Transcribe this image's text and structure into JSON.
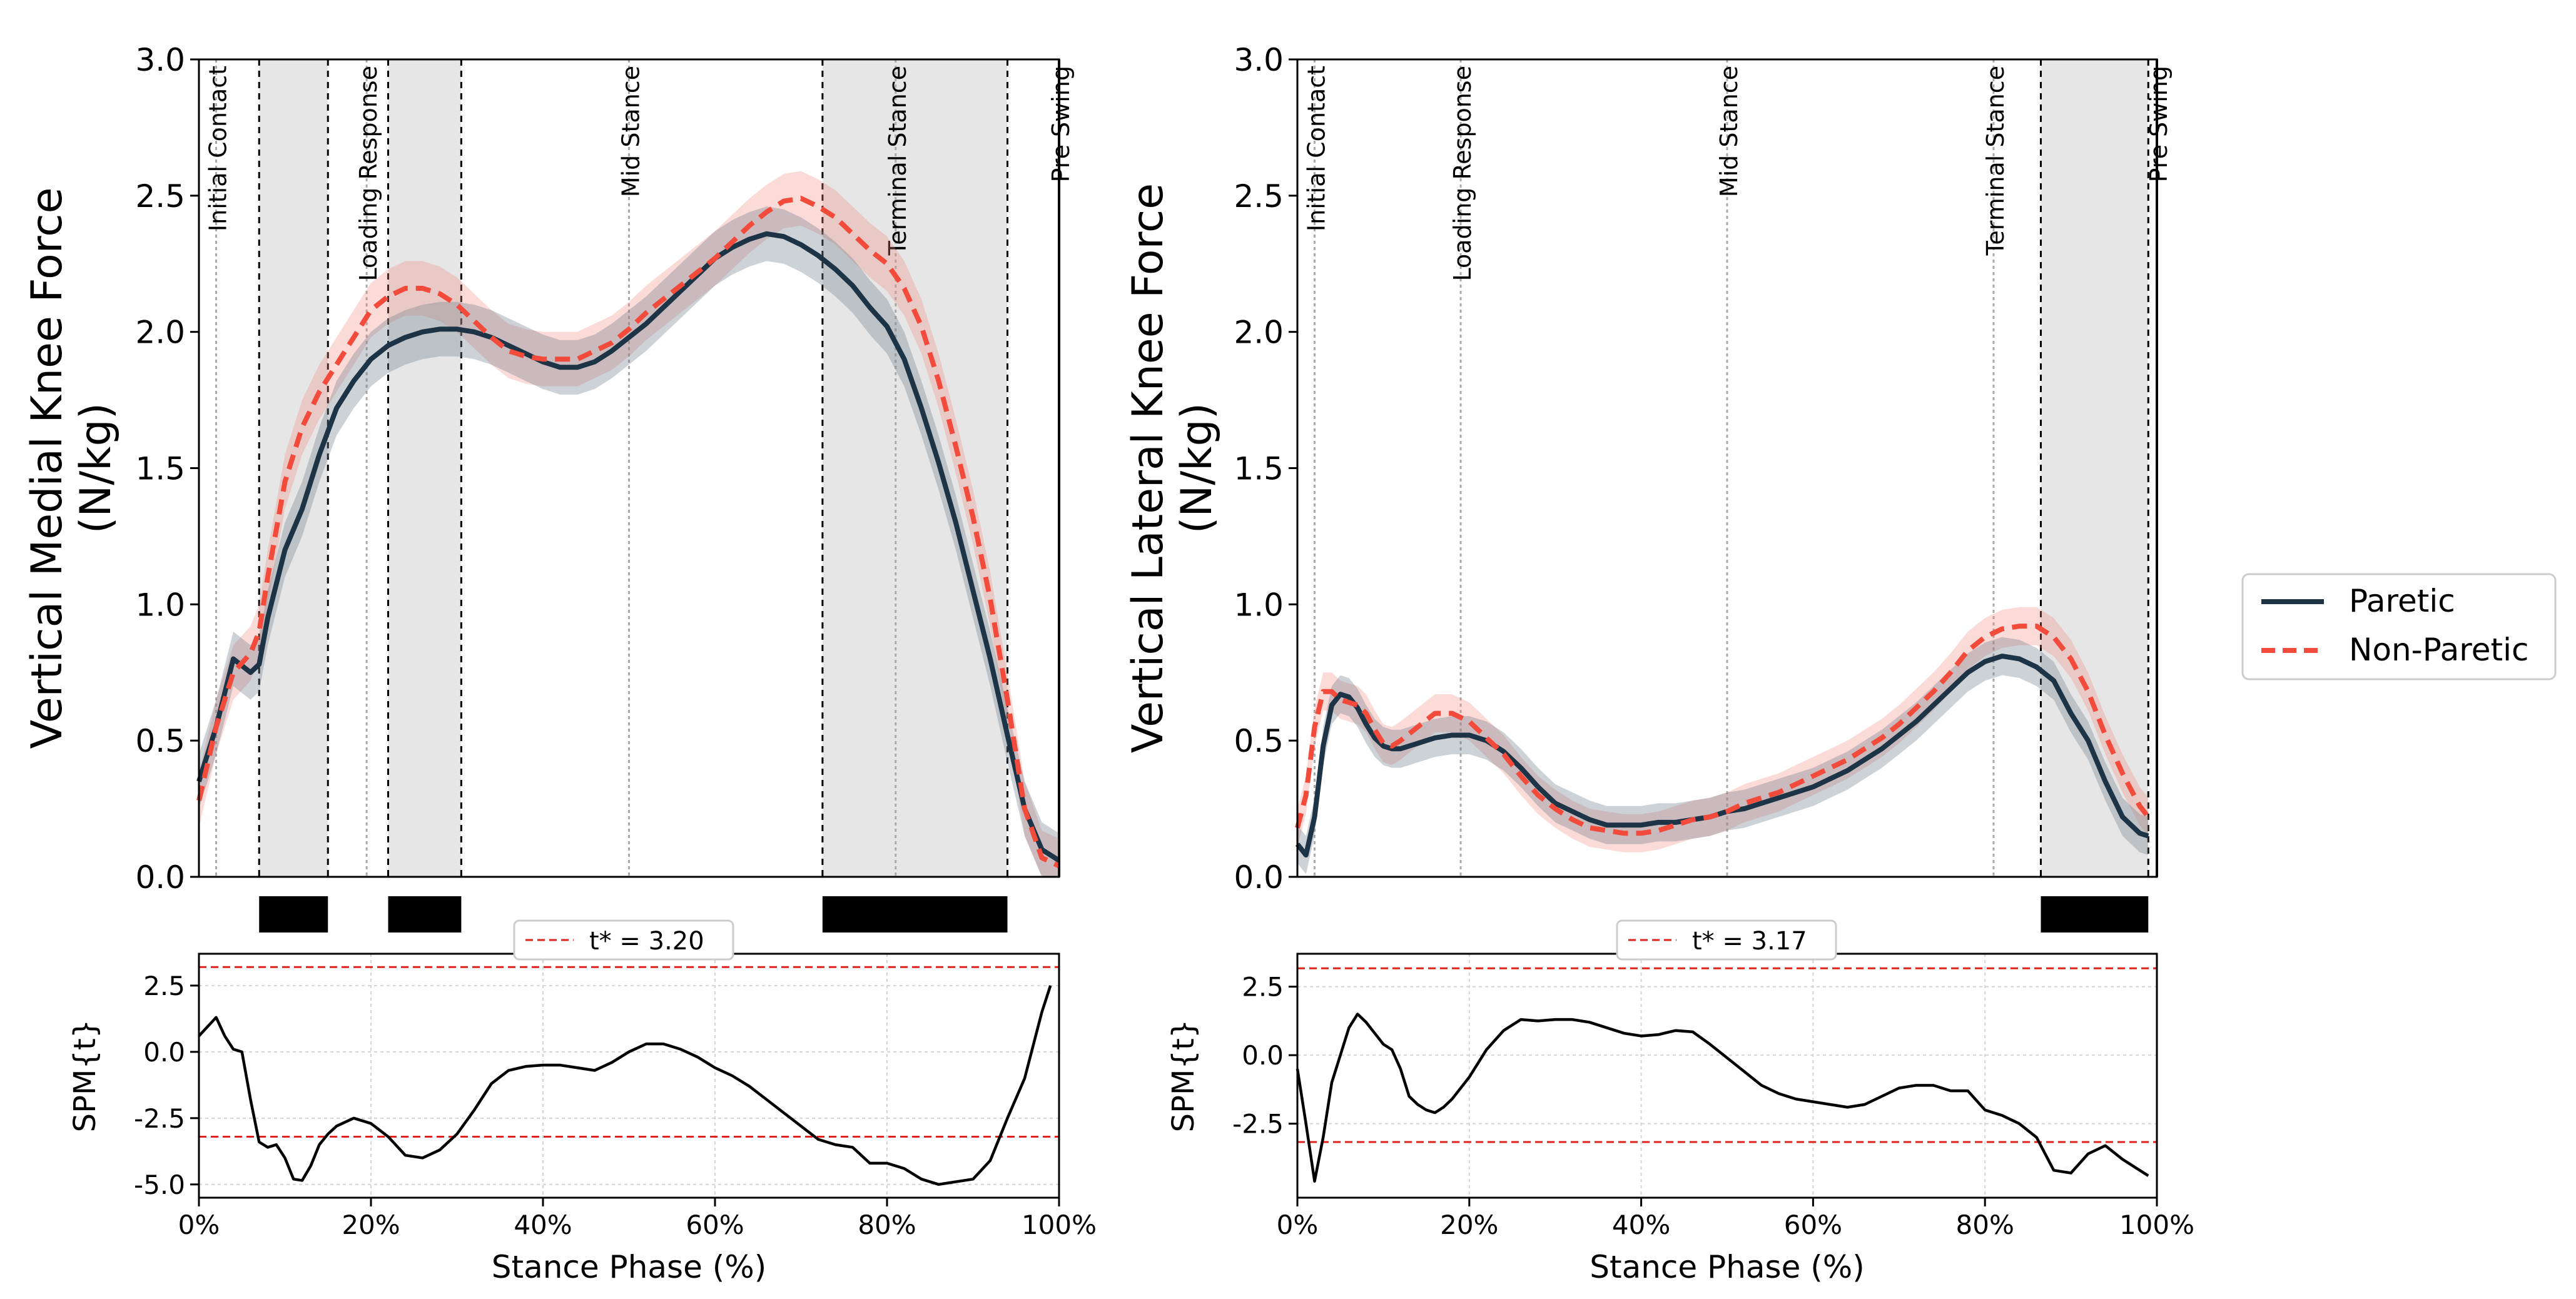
{
  "legend": {
    "entries": [
      {
        "label": "Paretic",
        "color": "#1d3447",
        "style": "solid"
      },
      {
        "label": "Non-Paretic",
        "color": "#f24b3c",
        "style": "dashed"
      }
    ]
  },
  "xlabel": "Stance Phase (%)",
  "bottom_ylabel": "SPM{t}",
  "gait_event_labels": [
    "Initial Contact",
    "Loading Response",
    "Mid Stance",
    "Terminal Stance",
    "Pre Swing"
  ],
  "chart_data": [
    {
      "type": "line",
      "panel": "left-top",
      "ylabel_line1": "Vertical Medial Knee Force",
      "ylabel_line2": "(N/kg)",
      "ylim": [
        0,
        3
      ],
      "xlim": [
        0,
        100
      ],
      "yticks": [
        "0.0",
        "0.5",
        "1.0",
        "1.5",
        "2.0",
        "2.5",
        "3.0"
      ],
      "x": [
        0,
        2,
        4,
        6,
        7,
        8,
        10,
        12,
        14,
        16,
        18,
        20,
        22,
        24,
        26,
        28,
        30,
        32,
        34,
        36,
        38,
        40,
        42,
        44,
        46,
        48,
        50,
        52,
        54,
        56,
        58,
        60,
        62,
        64,
        66,
        68,
        70,
        72,
        74,
        76,
        78,
        80,
        82,
        84,
        86,
        88,
        90,
        92,
        94,
        96,
        98,
        100
      ],
      "series": [
        {
          "name": "Paretic",
          "values": [
            0.35,
            0.55,
            0.8,
            0.75,
            0.78,
            0.95,
            1.2,
            1.35,
            1.55,
            1.72,
            1.82,
            1.9,
            1.95,
            1.98,
            2.0,
            2.01,
            2.01,
            2.0,
            1.98,
            1.95,
            1.92,
            1.89,
            1.87,
            1.87,
            1.89,
            1.93,
            1.98,
            2.03,
            2.09,
            2.15,
            2.21,
            2.27,
            2.31,
            2.34,
            2.36,
            2.35,
            2.32,
            2.28,
            2.23,
            2.17,
            2.09,
            2.02,
            1.9,
            1.72,
            1.52,
            1.3,
            1.05,
            0.8,
            0.52,
            0.25,
            0.1,
            0.06
          ],
          "spread": 0.1
        },
        {
          "name": "Non-Paretic",
          "values": [
            0.28,
            0.55,
            0.75,
            0.82,
            0.9,
            1.1,
            1.45,
            1.65,
            1.78,
            1.88,
            1.98,
            2.08,
            2.13,
            2.16,
            2.16,
            2.14,
            2.1,
            2.04,
            1.98,
            1.93,
            1.91,
            1.9,
            1.9,
            1.9,
            1.93,
            1.96,
            2.01,
            2.07,
            2.12,
            2.17,
            2.22,
            2.27,
            2.33,
            2.39,
            2.44,
            2.48,
            2.49,
            2.46,
            2.42,
            2.36,
            2.3,
            2.25,
            2.16,
            2.02,
            1.82,
            1.58,
            1.32,
            1.02,
            0.65,
            0.25,
            0.07,
            0.04
          ],
          "spread": 0.1
        }
      ],
      "gait_events_x": [
        2,
        19.5,
        50,
        81,
        100
      ],
      "significant_clusters": [
        [
          7,
          15
        ],
        [
          22,
          30.5
        ],
        [
          72.5,
          94
        ]
      ],
      "spm": {
        "t_star_label": "t* = 3.20",
        "t_star": 3.2,
        "ylim": [
          -5.5,
          3.7
        ],
        "yticks": [
          "2.5",
          "0.0",
          "-2.5",
          "-5.0"
        ],
        "x": [
          0,
          2,
          3,
          4,
          5,
          6,
          7,
          8,
          9,
          10,
          11,
          12,
          13,
          14,
          15,
          16,
          18,
          20,
          22,
          24,
          26,
          28,
          30,
          32,
          34,
          36,
          38,
          40,
          42,
          44,
          46,
          48,
          50,
          52,
          54,
          56,
          58,
          60,
          62,
          64,
          66,
          68,
          70,
          72,
          74,
          76,
          78,
          80,
          82,
          84,
          86,
          88,
          90,
          92,
          94,
          96,
          98,
          99
        ],
        "values": [
          0.6,
          1.3,
          0.6,
          0.1,
          0.0,
          -1.8,
          -3.4,
          -3.6,
          -3.5,
          -4.0,
          -4.8,
          -4.85,
          -4.3,
          -3.5,
          -3.1,
          -2.8,
          -2.5,
          -2.7,
          -3.2,
          -3.9,
          -4.0,
          -3.7,
          -3.1,
          -2.2,
          -1.2,
          -0.7,
          -0.55,
          -0.5,
          -0.5,
          -0.6,
          -0.7,
          -0.4,
          0.0,
          0.3,
          0.3,
          0.1,
          -0.2,
          -0.6,
          -0.9,
          -1.3,
          -1.8,
          -2.3,
          -2.8,
          -3.3,
          -3.5,
          -3.6,
          -4.2,
          -4.2,
          -4.4,
          -4.8,
          -5.0,
          -4.9,
          -4.8,
          -4.1,
          -2.5,
          -1.0,
          1.5,
          2.5
        ]
      }
    },
    {
      "type": "line",
      "panel": "right-top",
      "ylabel_line1": "Vertical Lateral Knee Force",
      "ylabel_line2": "(N/kg)",
      "ylim": [
        0,
        3
      ],
      "xlim": [
        0,
        100
      ],
      "yticks": [
        "0.0",
        "0.5",
        "1.0",
        "1.5",
        "2.0",
        "2.5",
        "3.0"
      ],
      "x": [
        0,
        1,
        2,
        3,
        4,
        5,
        6,
        7,
        8,
        9,
        10,
        11,
        12,
        14,
        16,
        18,
        20,
        22,
        24,
        26,
        28,
        30,
        32,
        34,
        36,
        38,
        40,
        42,
        44,
        46,
        48,
        50,
        52,
        54,
        56,
        58,
        60,
        62,
        64,
        66,
        68,
        70,
        72,
        74,
        76,
        78,
        80,
        82,
        84,
        86,
        88,
        90,
        92,
        94,
        96,
        98,
        99
      ],
      "series": [
        {
          "name": "Paretic",
          "values": [
            0.12,
            0.08,
            0.22,
            0.48,
            0.63,
            0.67,
            0.66,
            0.62,
            0.56,
            0.51,
            0.48,
            0.47,
            0.47,
            0.49,
            0.51,
            0.52,
            0.52,
            0.5,
            0.46,
            0.4,
            0.33,
            0.27,
            0.24,
            0.21,
            0.19,
            0.19,
            0.19,
            0.2,
            0.2,
            0.21,
            0.22,
            0.24,
            0.25,
            0.27,
            0.29,
            0.31,
            0.33,
            0.36,
            0.39,
            0.43,
            0.47,
            0.52,
            0.57,
            0.63,
            0.69,
            0.75,
            0.79,
            0.81,
            0.8,
            0.77,
            0.72,
            0.6,
            0.5,
            0.35,
            0.22,
            0.16,
            0.15
          ],
          "spread": 0.07
        },
        {
          "name": "Non-Paretic",
          "values": [
            0.18,
            0.3,
            0.55,
            0.68,
            0.68,
            0.65,
            0.64,
            0.63,
            0.6,
            0.54,
            0.49,
            0.48,
            0.5,
            0.55,
            0.6,
            0.6,
            0.57,
            0.51,
            0.45,
            0.37,
            0.3,
            0.25,
            0.21,
            0.18,
            0.17,
            0.16,
            0.16,
            0.17,
            0.19,
            0.21,
            0.22,
            0.24,
            0.27,
            0.29,
            0.31,
            0.34,
            0.37,
            0.4,
            0.43,
            0.47,
            0.51,
            0.56,
            0.62,
            0.68,
            0.75,
            0.83,
            0.88,
            0.91,
            0.92,
            0.92,
            0.88,
            0.8,
            0.68,
            0.52,
            0.38,
            0.26,
            0.22
          ],
          "spread": 0.07
        }
      ],
      "gait_events_x": [
        2,
        19,
        50,
        81,
        100
      ],
      "significant_clusters": [
        [
          86.5,
          99
        ]
      ],
      "spm": {
        "t_star_label": "t* = 3.17",
        "t_star": 3.17,
        "ylim": [
          -5.2,
          3.7
        ],
        "yticks": [
          "2.5",
          "0.0",
          "-2.5"
        ],
        "x": [
          0,
          1,
          2,
          3,
          4,
          5,
          6,
          7,
          8,
          9,
          10,
          11,
          12,
          13,
          14,
          15,
          16,
          17,
          18,
          19,
          20,
          22,
          24,
          26,
          28,
          30,
          32,
          34,
          36,
          38,
          40,
          42,
          44,
          46,
          48,
          50,
          52,
          54,
          56,
          58,
          60,
          62,
          64,
          66,
          68,
          70,
          72,
          74,
          76,
          78,
          80,
          82,
          84,
          86,
          88,
          90,
          92,
          94,
          96,
          98,
          99
        ],
        "values": [
          -0.5,
          -2.5,
          -4.6,
          -3.0,
          -1.0,
          0.0,
          1.0,
          1.5,
          1.2,
          0.8,
          0.4,
          0.2,
          -0.5,
          -1.5,
          -1.8,
          -2.0,
          -2.1,
          -1.9,
          -1.6,
          -1.2,
          -0.8,
          0.2,
          0.9,
          1.3,
          1.25,
          1.3,
          1.3,
          1.2,
          1.0,
          0.8,
          0.7,
          0.75,
          0.9,
          0.85,
          0.4,
          -0.1,
          -0.6,
          -1.1,
          -1.4,
          -1.6,
          -1.7,
          -1.8,
          -1.9,
          -1.8,
          -1.5,
          -1.2,
          -1.1,
          -1.1,
          -1.3,
          -1.3,
          -2.0,
          -2.2,
          -2.5,
          -3.0,
          -4.2,
          -4.3,
          -3.6,
          -3.3,
          -3.8,
          -4.2,
          -4.4
        ]
      }
    }
  ]
}
